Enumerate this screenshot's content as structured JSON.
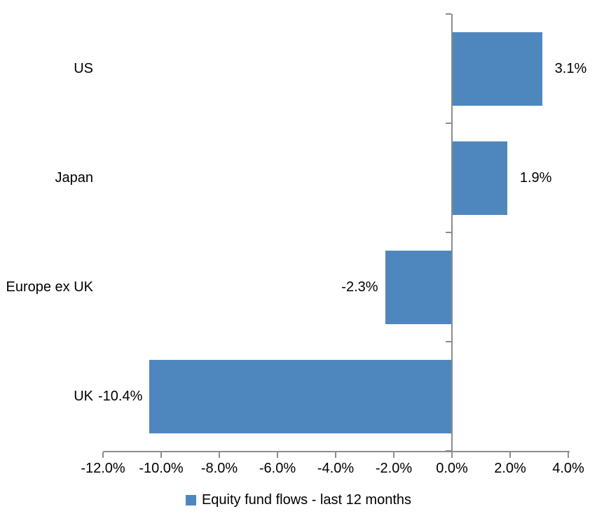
{
  "page": {
    "background_color": "#FFFFFF"
  },
  "chart_data": {
    "type": "bar",
    "orientation": "horizontal",
    "title": "",
    "xlabel": "",
    "ylabel": "",
    "categories": [
      "US",
      "Japan",
      "Europe ex UK",
      "UK"
    ],
    "series": [
      {
        "name": "Equity fund flows - last 12 months",
        "values": [
          3.1,
          1.9,
          -2.3,
          -10.4
        ],
        "value_labels": [
          "3.1%",
          "1.9%",
          "-2.3%",
          "-10.4%"
        ]
      }
    ],
    "xlim": [
      -12.0,
      4.0
    ],
    "x_ticks": [
      -12,
      -10,
      -8,
      -6,
      -4,
      -2,
      0,
      2,
      4
    ],
    "x_tick_labels": [
      "-12.0%",
      "-10.0%",
      "-8.0%",
      "-6.0%",
      "-4.0%",
      "-2.0%",
      "0.0%",
      "2.0%",
      "4.0%"
    ],
    "grid": false,
    "legend_position": "bottom-center",
    "legend": {
      "label": "Equity fund flows - last 12 months",
      "marker": "square-icon"
    },
    "colors": {
      "bar": "#4E87BE",
      "axis": "#8C8C8C",
      "text": "#000000"
    }
  }
}
